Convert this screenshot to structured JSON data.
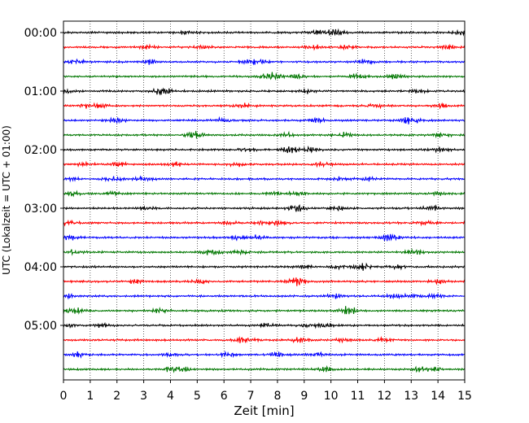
{
  "chart_data": {
    "type": "line",
    "title": "",
    "xlabel": "Zeit  [min]",
    "ylabel": "UTC (Lokalzeit = UTC + 01:00)",
    "xlim": [
      0,
      15
    ],
    "x_ticks": [
      0,
      1,
      2,
      3,
      4,
      5,
      6,
      7,
      8,
      9,
      10,
      11,
      12,
      13,
      14,
      15
    ],
    "x_tick_labels": [
      "0",
      "1",
      "2",
      "3",
      "4",
      "5",
      "6",
      "7",
      "8",
      "9",
      "10",
      "11",
      "12",
      "13",
      "14",
      "15"
    ],
    "y_tick_labels": [
      "00:00",
      "01:00",
      "02:00",
      "03:00",
      "04:00",
      "05:00"
    ],
    "grid": "vertical dotted",
    "trace_colors": [
      "#000000",
      "#ff0000",
      "#0000ff",
      "#007700"
    ],
    "trace_count": 24,
    "traces_per_hour": 4,
    "trace_minutes": 15
  }
}
